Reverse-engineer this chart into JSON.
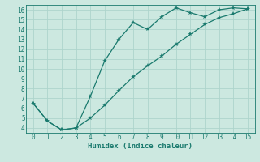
{
  "xlabel": "Humidex (Indice chaleur)",
  "bg_color": "#cce8e0",
  "line_color": "#1a7a6e",
  "grid_color": "#aed4cc",
  "xlim": [
    -0.5,
    15.5
  ],
  "ylim": [
    3.5,
    16.5
  ],
  "xticks": [
    0,
    1,
    2,
    3,
    4,
    5,
    6,
    7,
    8,
    9,
    10,
    11,
    12,
    13,
    14,
    15
  ],
  "yticks": [
    4,
    5,
    6,
    7,
    8,
    9,
    10,
    11,
    12,
    13,
    14,
    15,
    16
  ],
  "line1_x": [
    0,
    1,
    2,
    3,
    4,
    5,
    6,
    7,
    8,
    9,
    10,
    11,
    12,
    13,
    14,
    15
  ],
  "line1_y": [
    6.5,
    4.7,
    3.8,
    4.0,
    7.2,
    10.8,
    13.0,
    14.7,
    14.0,
    15.3,
    16.2,
    15.7,
    15.3,
    16.0,
    16.2,
    16.1
  ],
  "line2_x": [
    0,
    1,
    2,
    3,
    4,
    5,
    6,
    7,
    8,
    9,
    10,
    11,
    12,
    13,
    14,
    15
  ],
  "line2_y": [
    6.5,
    4.7,
    3.8,
    4.0,
    5.0,
    6.3,
    7.8,
    9.2,
    10.3,
    11.3,
    12.5,
    13.5,
    14.5,
    15.2,
    15.6,
    16.1
  ],
  "marker": "*",
  "markersize": 4,
  "linewidth": 0.9,
  "tick_fontsize": 5.5,
  "xlabel_fontsize": 6.5
}
